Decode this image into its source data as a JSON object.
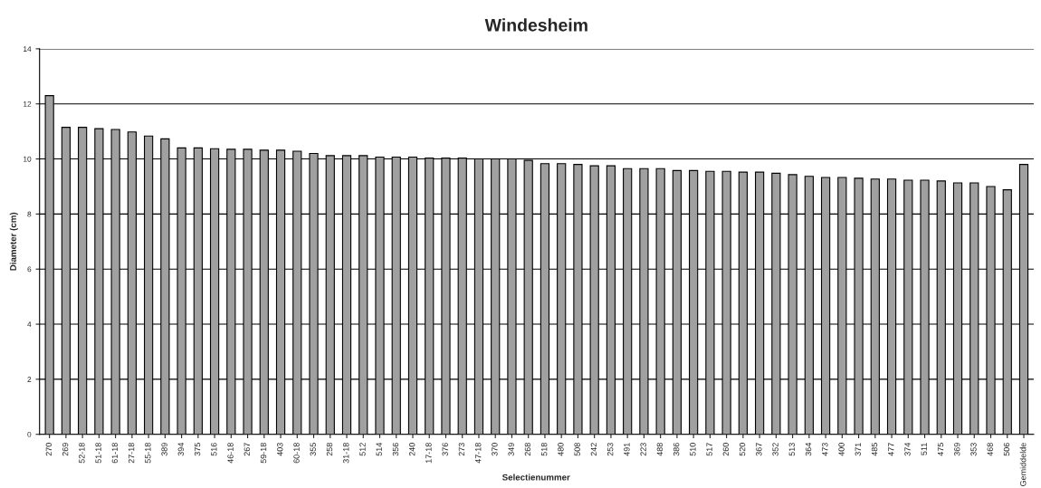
{
  "chart_data": {
    "type": "bar",
    "title": "Windesheim",
    "xlabel": "Selectienummer",
    "ylabel": "Diameter (cm)",
    "categories": [
      "270",
      "269",
      "52-18",
      "51-18",
      "61-18",
      "27-18",
      "55-18",
      "389",
      "394",
      "375",
      "516",
      "46-18",
      "267",
      "59-18",
      "403",
      "60-18",
      "355",
      "258",
      "31-18",
      "512",
      "514",
      "356",
      "240",
      "17-18",
      "376",
      "273",
      "47-18",
      "370",
      "349",
      "268",
      "518",
      "480",
      "508",
      "242",
      "253",
      "491",
      "223",
      "488",
      "386",
      "510",
      "517",
      "260",
      "520",
      "367",
      "352",
      "513",
      "364",
      "473",
      "400",
      "371",
      "485",
      "477",
      "374",
      "511",
      "475",
      "369",
      "353",
      "468",
      "506",
      "Gemiddelde"
    ],
    "values": [
      12.3,
      11.15,
      11.15,
      11.1,
      11.07,
      10.98,
      10.83,
      10.73,
      10.4,
      10.4,
      10.37,
      10.35,
      10.35,
      10.32,
      10.32,
      10.28,
      10.2,
      10.12,
      10.12,
      10.12,
      10.07,
      10.07,
      10.07,
      10.03,
      10.03,
      10.03,
      10.0,
      10.0,
      10.0,
      9.95,
      9.83,
      9.83,
      9.8,
      9.75,
      9.75,
      9.65,
      9.65,
      9.65,
      9.58,
      9.58,
      9.55,
      9.55,
      9.52,
      9.52,
      9.48,
      9.43,
      9.37,
      9.33,
      9.33,
      9.3,
      9.27,
      9.27,
      9.23,
      9.23,
      9.2,
      9.13,
      9.13,
      9.0,
      8.88,
      9.8
    ],
    "color": "#a0a0a0",
    "ylim": [
      0,
      14
    ],
    "yticks": [
      0,
      2,
      4,
      6,
      8,
      10,
      12,
      14
    ],
    "grid": "y",
    "legend": false
  }
}
